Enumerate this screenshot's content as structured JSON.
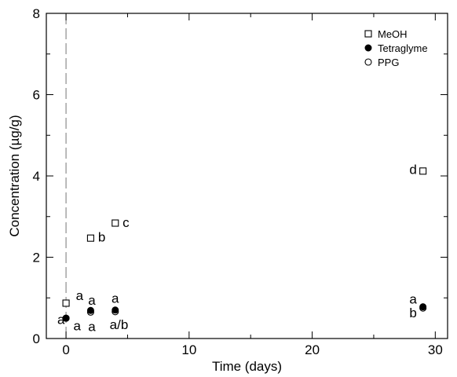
{
  "chart_data": {
    "type": "scatter",
    "xlabel": "Time (days)",
    "ylabel": "Concentration (µg/g)",
    "xlim": [
      -1.6,
      31
    ],
    "ylim": [
      0,
      8
    ],
    "x_ticks": [
      0,
      10,
      20,
      30
    ],
    "y_ticks": [
      0,
      2,
      4,
      6,
      8
    ],
    "legend_position": "top-right",
    "grid": false,
    "reference_line_x": 0,
    "series": [
      {
        "name": "MeOH",
        "marker": "square-open",
        "points": [
          {
            "x": 0,
            "y": 0.87
          },
          {
            "x": 2,
            "y": 2.47
          },
          {
            "x": 4,
            "y": 2.84
          },
          {
            "x": 29,
            "y": 4.12
          }
        ]
      },
      {
        "name": "Tetraglyme",
        "marker": "circle-filled",
        "points": [
          {
            "x": 0,
            "y": 0.5
          },
          {
            "x": 2,
            "y": 0.69
          },
          {
            "x": 4,
            "y": 0.7
          },
          {
            "x": 29,
            "y": 0.78
          }
        ]
      },
      {
        "name": "PPG",
        "marker": "circle-open",
        "points": [
          {
            "x": 0,
            "y": 0.5
          },
          {
            "x": 2,
            "y": 0.65
          },
          {
            "x": 4,
            "y": 0.66
          },
          {
            "x": 29,
            "y": 0.75
          }
        ]
      }
    ],
    "annotations": [
      {
        "text": "a",
        "x": 0.8,
        "y": 1.06,
        "anchor": "start"
      },
      {
        "text": "b",
        "x": 2.6,
        "y": 2.5,
        "anchor": "start"
      },
      {
        "text": "c",
        "x": 4.6,
        "y": 2.86,
        "anchor": "start"
      },
      {
        "text": "d",
        "x": 28.5,
        "y": 4.16,
        "anchor": "end"
      },
      {
        "text": "a",
        "x": 2.1,
        "y": 0.95,
        "anchor": "middle"
      },
      {
        "text": "a",
        "x": 4.0,
        "y": 1.0,
        "anchor": "middle"
      },
      {
        "text": "a",
        "x": -0.1,
        "y": 0.47,
        "anchor": "end"
      },
      {
        "text": "a",
        "x": 0.9,
        "y": 0.32,
        "anchor": "middle"
      },
      {
        "text": "a",
        "x": 2.1,
        "y": 0.3,
        "anchor": "middle"
      },
      {
        "text": "a/b",
        "x": 4.3,
        "y": 0.35,
        "anchor": "middle"
      },
      {
        "text": "a",
        "x": 28.2,
        "y": 0.98,
        "anchor": "middle"
      },
      {
        "text": "b",
        "x": 28.2,
        "y": 0.64,
        "anchor": "middle"
      }
    ]
  }
}
